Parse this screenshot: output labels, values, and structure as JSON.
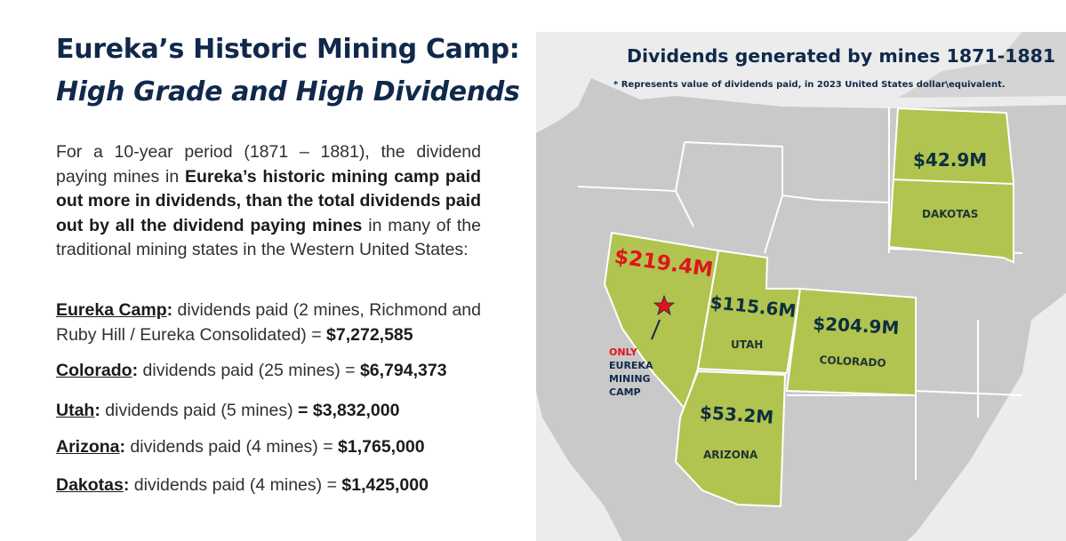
{
  "left": {
    "title_line1": "Eureka’s Historic Mining Camp:",
    "title_line2": "High Grade and High Dividends",
    "intro": {
      "part1": "For a 10-year period (1871 – 1881), the dividend paying mines in ",
      "bold1": "Eureka’s historic mining camp paid out more in dividends, than the total dividends paid out by all the dividend paying mines",
      "part2": " in many of the traditional mining states in the Western United States:"
    },
    "stats": [
      {
        "label": "Eureka Camp",
        "text": " dividends paid (2 mines, Richmond and Ruby Hill / Eureka Consolidated) = ",
        "amount": "$7,272,585"
      },
      {
        "label": "Colorado",
        "text": " dividends paid (25 mines) = ",
        "amount": "$6,794,373"
      },
      {
        "label": "Utah",
        "text": " dividends paid (5 mines) ",
        "amount": "= $3,832,000"
      },
      {
        "label": "Arizona",
        "text": " dividends paid (4 mines) = ",
        "amount": "$1,765,000"
      },
      {
        "label": "Dakotas",
        "text": " dividends paid (4 mines) = ",
        "amount": "$1,425,000"
      }
    ]
  },
  "map": {
    "title": "Dividends generated by mines 1871-1881",
    "note": "* Represents value of dividends paid, in 2023 United States dollar\\equivalent.",
    "states": [
      {
        "name": "",
        "value": "$219.4M"
      },
      {
        "name": "UTAH",
        "value": "$115.6M"
      },
      {
        "name": "COLORADO",
        "value": "$204.9M"
      },
      {
        "name": "ARIZONA",
        "value": "$53.2M"
      },
      {
        "name": "DAKOTAS",
        "value": "$42.9M"
      }
    ],
    "only_note": {
      "line1": "ONLY",
      "line2": "EUREKA",
      "line3": "MINING",
      "line4": "CAMP"
    },
    "colors": {
      "highlight": "#b0c44f",
      "land": "#c9c9c9",
      "water": "#ececec",
      "border": "#ffffff",
      "red": "#e1141b",
      "navy": "#10294b"
    }
  }
}
